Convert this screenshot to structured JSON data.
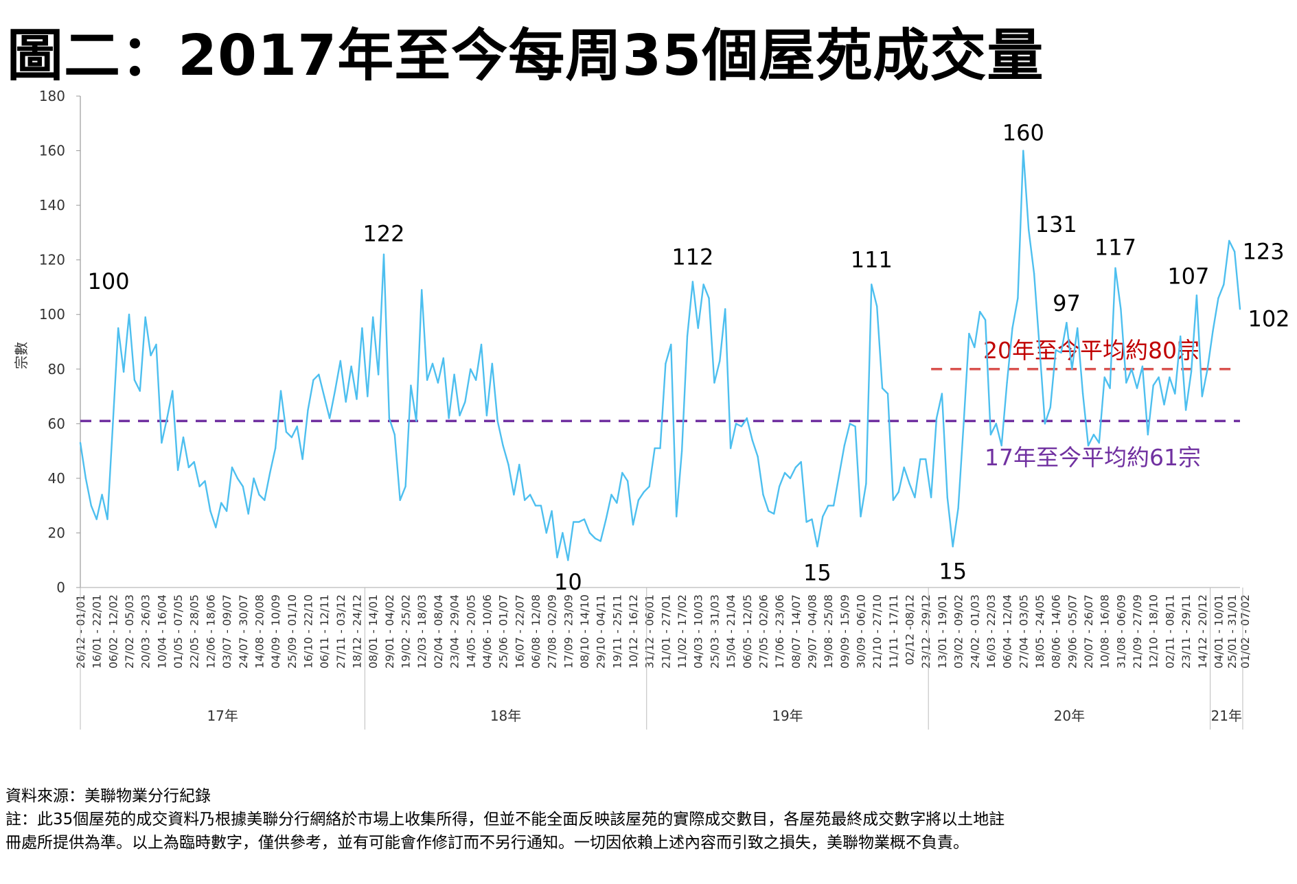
{
  "title": "圖二：2017年至今每周35個屋苑成交量",
  "notes": {
    "source": "資料來源：美聯物業分行紀錄",
    "note_line1": "註：此35個屋苑的成交資料乃根據美聯分行網絡於市場上收集所得，但並不能全面反映該屋苑的實際成交數目，各屋苑最終成交數字將以土地註",
    "note_line2": "冊處所提供為準。以上為臨時數字，僅供參考，並有可能會作修訂而不另行通知。一切因依賴上述內容而引致之損失，美聯物業概不負責。"
  },
  "chart_data": {
    "type": "line",
    "title": "圖二：2017年至今每周35個屋苑成交量",
    "ylabel": "宗數",
    "xlabel": "",
    "ylim": [
      0,
      180
    ],
    "yticks": [
      0,
      20,
      40,
      60,
      80,
      100,
      120,
      140,
      160,
      180
    ],
    "grid": false,
    "line_color": "#4dbfef",
    "x_tick_labels": [
      "26/12 - 01/01",
      "16/01 - 22/01",
      "06/02 - 12/02",
      "27/02 - 05/03",
      "20/03 - 26/03",
      "10/04 - 16/04",
      "01/05 - 07/05",
      "22/05 - 28/05",
      "12/06 - 18/06",
      "03/07 - 09/07",
      "24/07 - 30/07",
      "14/08 - 20/08",
      "04/09 - 10/09",
      "25/09 - 01/10",
      "16/10 - 22/10",
      "06/11 - 12/11",
      "27/11 - 03/12",
      "18/12 - 24/12",
      "08/01 - 14/01",
      "29/01 - 04/02",
      "19/02 - 25/02",
      "12/03 - 18/03",
      "02/04 - 08/04",
      "23/04 - 29/04",
      "14/05 - 20/05",
      "04/06 - 10/06",
      "25/06 - 01/07",
      "16/07 - 22/07",
      "06/08 - 12/08",
      "27/08 - 02/09",
      "17/09 - 23/09",
      "08/10 - 14/10",
      "29/10 - 04/11",
      "19/11 - 25/11",
      "10/12 - 16/12",
      "31/12 - 06/01",
      "21/01 - 27/01",
      "11/02 - 17/02",
      "04/03 - 10/03",
      "25/03 - 31/03",
      "15/04 - 21/04",
      "06/05 - 12/05",
      "27/05 - 02/06",
      "17/06 - 23/06",
      "08/07 - 14/07",
      "29/07 - 04/08",
      "19/08 - 25/08",
      "09/09 - 15/09",
      "30/09 - 06/10",
      "21/10 - 27/10",
      "11/11 - 17/11",
      "02/12 -08/12",
      "23/12 - 29/12",
      "13/01 - 19/01",
      "03/02 - 09/02",
      "24/02 - 01/03",
      "16/03 - 22/03",
      "06/04 - 12/04",
      "27/04 - 03/05",
      "18/05 - 24/05",
      "08/06 - 14/06",
      "29/06 - 05/07",
      "20/07 - 26/07",
      "10/08 - 16/08",
      "31/08 - 06/09",
      "21/09 - 27/09",
      "12/10 - 18/10",
      "02/11 - 08/11",
      "23/11 - 29/11",
      "14/12 - 20/12",
      "04/01 - 10/01",
      "25/01 - 31/01",
      "01/02 - 07/02"
    ],
    "year_groups": [
      {
        "label": "17年",
        "weeks": 53
      },
      {
        "label": "18年",
        "weeks": 52
      },
      {
        "label": "19年",
        "weeks": 52
      },
      {
        "label": "20年",
        "weeks": 52
      },
      {
        "label": "21年",
        "weeks": 6
      }
    ],
    "series": [
      {
        "values": [
          53,
          40,
          30,
          25,
          34,
          25,
          60,
          95,
          79,
          100,
          76,
          72,
          99,
          85,
          89,
          53,
          62,
          72,
          43,
          55,
          44,
          46,
          37,
          39,
          28,
          22,
          31,
          28,
          44,
          40,
          37,
          27,
          40,
          34,
          32,
          42,
          51,
          72,
          57,
          55,
          59,
          47,
          65,
          76,
          78,
          70,
          62,
          72,
          83,
          68,
          81,
          69,
          95,
          70,
          99,
          78,
          122,
          62,
          56,
          32,
          37,
          74,
          61,
          109,
          76,
          82,
          75,
          84,
          62,
          78,
          63,
          68,
          80,
          76,
          89,
          63,
          82,
          61,
          52,
          45,
          34,
          45,
          32,
          34,
          30,
          30,
          20,
          28,
          11,
          20,
          10,
          24,
          24,
          25,
          20,
          18,
          17,
          25,
          34,
          31,
          42,
          39,
          23,
          32,
          35,
          37,
          51,
          51,
          82,
          89,
          26,
          50,
          92,
          112,
          95,
          111,
          106,
          75,
          83,
          102,
          51,
          60,
          59,
          62,
          54,
          48,
          34,
          28,
          27,
          37,
          42,
          40,
          44,
          46,
          24,
          25,
          15,
          26,
          30,
          30,
          41,
          52,
          60,
          59,
          26,
          38,
          111,
          103,
          73,
          71,
          32,
          35,
          44,
          38,
          33,
          47,
          47,
          33,
          62,
          71,
          33,
          15,
          29,
          60,
          93,
          88,
          101,
          98,
          56,
          60,
          52,
          75,
          95,
          106,
          160,
          131,
          115,
          88,
          60,
          66,
          87,
          86,
          97,
          80,
          95,
          71,
          52,
          56,
          53,
          77,
          73,
          117,
          102,
          75,
          80,
          73,
          81,
          56,
          74,
          77,
          67,
          77,
          71,
          92,
          65,
          79,
          107,
          70,
          80,
          94,
          106,
          111,
          127,
          123,
          102
        ]
      }
    ],
    "annotations": [
      {
        "text": "100",
        "index": 9
      },
      {
        "text": "122",
        "index": 56
      },
      {
        "text": "10",
        "index": 90
      },
      {
        "text": "112",
        "index": 113
      },
      {
        "text": "111",
        "index": 146
      },
      {
        "text": "15",
        "index": 136
      },
      {
        "text": "15",
        "index": 161
      },
      {
        "text": "160",
        "index": 174
      },
      {
        "text": "131",
        "index": 175
      },
      {
        "text": "97",
        "index": 182
      },
      {
        "text": "117",
        "index": 191
      },
      {
        "text": "107",
        "index": 206
      },
      {
        "text": "123",
        "index": 213
      },
      {
        "text": "102",
        "index": 214
      }
    ],
    "reference_lines": [
      {
        "label": "17年至今平均約61宗",
        "value": 61,
        "color": "#7030a0",
        "from_index": 0
      },
      {
        "label": "20年至今平均約80宗",
        "value": 80,
        "color": "#c00000",
        "line_color": "#d9534f",
        "from_index": 157
      }
    ]
  }
}
